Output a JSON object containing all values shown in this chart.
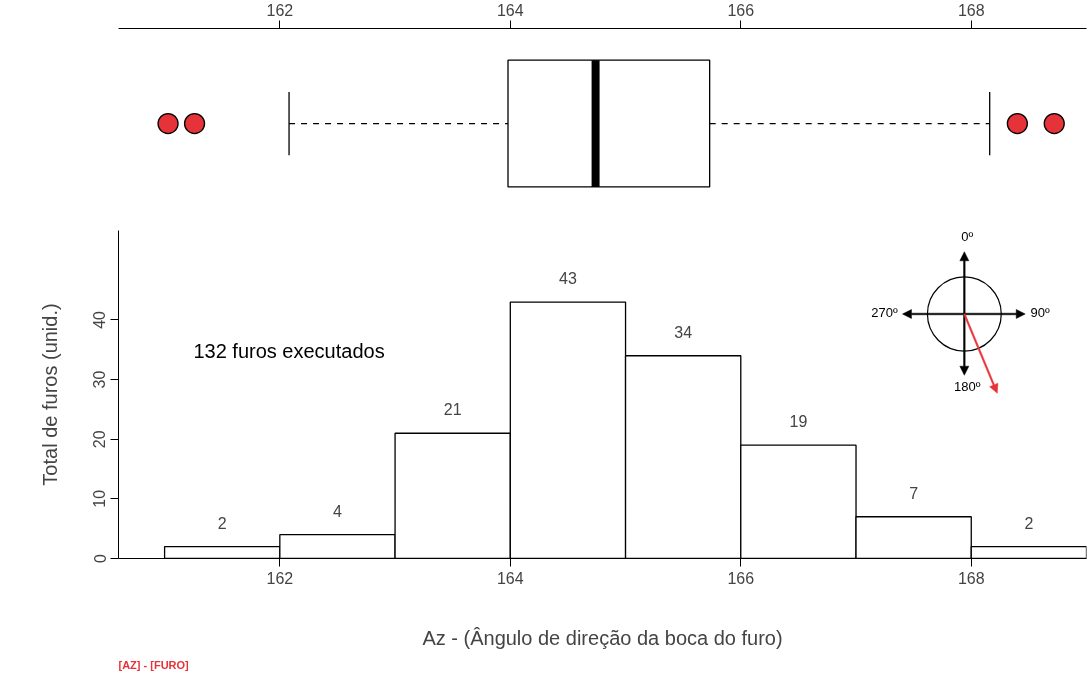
{
  "chart_data": [
    {
      "type": "box",
      "orientation": "horizontal",
      "categories": [
        null
      ],
      "color": "#ffffff",
      "line_style": "dashed",
      "grid": false,
      "tick_labels": "x",
      "xlim": [
        160.6,
        169.0
      ],
      "xticks": [
        162,
        164,
        166,
        168
      ],
      "boxes": [
        {
          "low": 162.08,
          "q1": 163.98,
          "median": 164.74,
          "q3": 165.73,
          "high": 168.16,
          "outliers": [
            161.03,
            161.26,
            168.4,
            168.72
          ]
        }
      ]
    },
    {
      "type": "histogram",
      "color": "#ffffff",
      "bins": [
        161,
        162,
        163,
        164,
        165,
        166,
        167,
        168,
        169
      ],
      "values": [
        2,
        4,
        21,
        43,
        34,
        19,
        7,
        2
      ],
      "data_labels": true,
      "grid": false,
      "xlim": [
        160.6,
        169.0
      ],
      "xticks": [
        162,
        164,
        166,
        168
      ],
      "ylim": [
        0,
        55
      ],
      "yticks": [
        0,
        10,
        20,
        30,
        40
      ],
      "xlabel": "Az - (Ângulo de direção da boca do furo)",
      "ylabel": "Total de furos (unid.)",
      "annotations": [
        "132 furos executados",
        "0º",
        "90º",
        "180º",
        "270º",
        "[AZ] - [FURO]"
      ]
    }
  ]
}
